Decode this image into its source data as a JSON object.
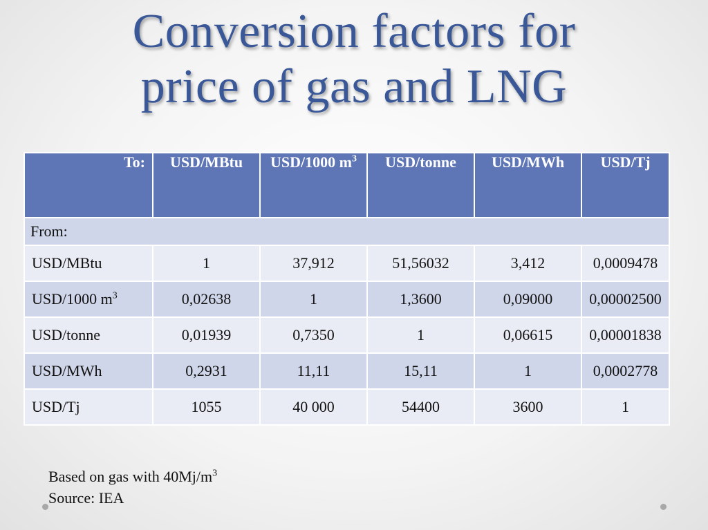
{
  "title": {
    "line1": "Conversion factors for",
    "line2": "price of gas and LNG"
  },
  "table": {
    "header": {
      "to_label": "To:",
      "columns": [
        {
          "text": "USD/MBtu",
          "sup": ""
        },
        {
          "text": "USD/1000 m",
          "sup": "3"
        },
        {
          "text": "USD/tonne",
          "sup": ""
        },
        {
          "text": "USD/MWh",
          "sup": ""
        },
        {
          "text": "USD/Tj",
          "sup": ""
        }
      ]
    },
    "from_label": "From:",
    "rows": [
      {
        "label": "USD/MBtu",
        "sup": "",
        "values": [
          "1",
          "37,912",
          "51,56032",
          "3,412",
          "0,0009478"
        ]
      },
      {
        "label": "USD/1000 m",
        "sup": "3",
        "values": [
          "0,02638",
          "1",
          "1,3600",
          "0,09000",
          "0,00002500"
        ]
      },
      {
        "label": "USD/tonne",
        "sup": "",
        "values": [
          "0,01939",
          "0,7350",
          "1",
          "0,06615",
          "0,00001838"
        ]
      },
      {
        "label": "USD/MWh",
        "sup": "",
        "values": [
          "0,2931",
          "11,11",
          "15,11",
          "1",
          "0,0002778"
        ]
      },
      {
        "label": "USD/Tj",
        "sup": "",
        "values": [
          "1055",
          "40 000",
          "54400",
          "3600",
          "1"
        ]
      }
    ]
  },
  "notes": {
    "line1": "Based on gas with 40Mj/m",
    "line1_sup": "3",
    "line2": "Source: IEA"
  },
  "colors": {
    "title": "#3a5897",
    "header_bg": "#5e76b5",
    "row_light": "#e9ecf4",
    "row_dark": "#d0d6e9"
  }
}
